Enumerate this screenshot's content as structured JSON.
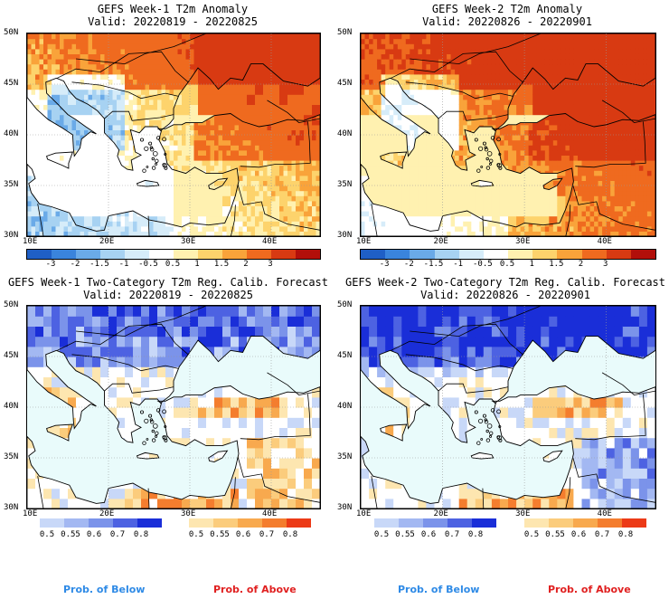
{
  "panels": [
    {
      "id": "p1",
      "title1": "GEFS Week-1 T2m Anomaly",
      "title2": "Valid: 20220819 - 20220825",
      "kind": "anom"
    },
    {
      "id": "p2",
      "title1": "GEFS Week-2 T2m Anomaly",
      "title2": "Valid: 20220826 - 20220901",
      "kind": "anom"
    },
    {
      "id": "p3",
      "title1": "GEFS Week-1 Two-Category T2m Reg. Calib. Forecast",
      "title2": "Valid: 20220819 - 20220825",
      "kind": "prob"
    },
    {
      "id": "p4",
      "title1": "GEFS Week-2 Two-Category T2m Reg. Calib. Forecast",
      "title2": "Valid: 20220826 - 20220901",
      "kind": "prob"
    }
  ],
  "axes": {
    "lat_labels": [
      "50N",
      "45N",
      "40N",
      "35N",
      "30N"
    ],
    "lon_labels": [
      "10E",
      "20E",
      "30E",
      "40E"
    ]
  },
  "anomaly_legend": {
    "labels": [
      "-3",
      "-2",
      "-1.5",
      "-1",
      "-0.5",
      "0.5",
      "1",
      "1.5",
      "2",
      "3"
    ],
    "colors": [
      "#1f5fc6",
      "#3a84dc",
      "#6aaae8",
      "#a7d2f2",
      "#d6ecf9",
      "#ffffff",
      "#fff1b0",
      "#fdd36c",
      "#f9a33a",
      "#ef6a1f",
      "#d83a12",
      "#b20f0a"
    ]
  },
  "prob_legend": {
    "below_labels": [
      "0.5",
      "0.55",
      "0.6",
      "0.7",
      "0.8"
    ],
    "above_labels": [
      "0.5",
      "0.55",
      "0.6",
      "0.7",
      "0.8"
    ],
    "below_colors": [
      "#c8d8f8",
      "#a3b8f2",
      "#7b93ea",
      "#4d62e2",
      "#1a2ed8"
    ],
    "above_colors": [
      "#fde6b0",
      "#fbcc7c",
      "#f8a94e",
      "#f47d2e",
      "#ec3a17"
    ],
    "below_text": "Prob. of Below",
    "above_text": "Prob. of Above",
    "below_color": "#2e8ae6",
    "above_color": "#e02020"
  },
  "colors": {
    "sea": "#e9fbfb",
    "border": "#000000"
  }
}
